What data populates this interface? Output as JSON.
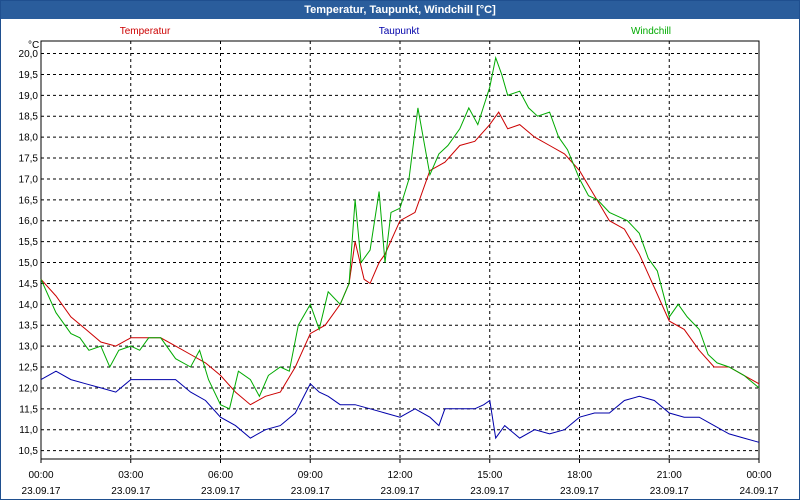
{
  "window": {
    "title": "Temperatur, Taupunkt, Windchill [°C]"
  },
  "chart_data": {
    "type": "line",
    "title": "Temperatur, Taupunkt, Windchill [°C]",
    "ylabel": "°C",
    "ylim": [
      10.3,
      20.3
    ],
    "xlim": [
      0,
      24
    ],
    "grid": true,
    "legend_position": "top",
    "y_ticks": [
      "10,5",
      "11,0",
      "11,5",
      "12,0",
      "12,5",
      "13,0",
      "13,5",
      "14,0",
      "14,5",
      "15,0",
      "15,5",
      "16,0",
      "16,5",
      "17,0",
      "17,5",
      "18,0",
      "18,5",
      "19,0",
      "19,5",
      "20,0"
    ],
    "x_ticks": [
      {
        "time": "00:00",
        "date": "23.09.17"
      },
      {
        "time": "03:00",
        "date": "23.09.17"
      },
      {
        "time": "06:00",
        "date": "23.09.17"
      },
      {
        "time": "09:00",
        "date": "23.09.17"
      },
      {
        "time": "12:00",
        "date": "23.09.17"
      },
      {
        "time": "15:00",
        "date": "23.09.17"
      },
      {
        "time": "18:00",
        "date": "23.09.17"
      },
      {
        "time": "21:00",
        "date": "23.09.17"
      },
      {
        "time": "00:00",
        "date": "24.09.17"
      }
    ],
    "series": [
      {
        "name": "Temperatur",
        "color": "#cc0000",
        "x": [
          0,
          0.5,
          1,
          1.5,
          2,
          2.5,
          3,
          3.5,
          4,
          4.5,
          5,
          5.5,
          6,
          6.5,
          7,
          7.5,
          8,
          8.5,
          9,
          9.5,
          10,
          10.3,
          10.5,
          10.8,
          11,
          11.3,
          11.5,
          12,
          12.5,
          13,
          13.5,
          14,
          14.5,
          15,
          15.3,
          15.6,
          16,
          16.5,
          17,
          17.5,
          18,
          18.5,
          19,
          19.5,
          20,
          20.5,
          21,
          21.5,
          22,
          22.5,
          23,
          23.5,
          24
        ],
        "y": [
          14.6,
          14.2,
          13.7,
          13.4,
          13.1,
          13.0,
          13.2,
          13.2,
          13.2,
          13.0,
          12.8,
          12.6,
          12.3,
          11.9,
          11.6,
          11.8,
          11.9,
          12.5,
          13.3,
          13.5,
          14.0,
          14.5,
          15.5,
          14.6,
          14.5,
          15.0,
          15.2,
          16.0,
          16.2,
          17.2,
          17.4,
          17.8,
          17.9,
          18.3,
          18.6,
          18.2,
          18.3,
          18.0,
          17.8,
          17.6,
          17.2,
          16.6,
          16.0,
          15.8,
          15.2,
          14.4,
          13.6,
          13.4,
          12.9,
          12.5,
          12.5,
          12.3,
          12.1
        ]
      },
      {
        "name": "Taupunkt",
        "color": "#0000aa",
        "x": [
          0,
          0.5,
          1,
          1.5,
          2,
          2.5,
          3,
          3.5,
          4,
          4.5,
          5,
          5.5,
          6,
          6.5,
          7,
          7.5,
          8,
          8.5,
          9,
          9.3,
          9.6,
          10,
          10.5,
          11,
          11.5,
          12,
          12.5,
          13,
          13.3,
          13.5,
          14,
          14.5,
          14.8,
          15,
          15.2,
          15.5,
          16,
          16.5,
          17,
          17.5,
          18,
          18.5,
          19,
          19.5,
          20,
          20.5,
          21,
          21.5,
          22,
          22.5,
          23,
          23.5,
          24
        ],
        "y": [
          12.2,
          12.4,
          12.2,
          12.1,
          12.0,
          11.9,
          12.2,
          12.2,
          12.2,
          12.2,
          11.9,
          11.7,
          11.3,
          11.1,
          10.8,
          11.0,
          11.1,
          11.4,
          12.1,
          11.9,
          11.8,
          11.6,
          11.6,
          11.5,
          11.4,
          11.3,
          11.5,
          11.3,
          11.1,
          11.5,
          11.5,
          11.5,
          11.6,
          11.7,
          10.8,
          11.1,
          10.8,
          11.0,
          10.9,
          11.0,
          11.3,
          11.4,
          11.4,
          11.7,
          11.8,
          11.7,
          11.4,
          11.3,
          11.3,
          11.1,
          10.9,
          10.8,
          10.7
        ]
      },
      {
        "name": "Windchill",
        "color": "#00aa00",
        "x": [
          0,
          0.5,
          1,
          1.3,
          1.6,
          2,
          2.3,
          2.6,
          3,
          3.3,
          3.6,
          4,
          4.5,
          5,
          5.3,
          5.6,
          6,
          6.3,
          6.6,
          7,
          7.3,
          7.6,
          8,
          8.3,
          8.6,
          9,
          9.3,
          9.6,
          10,
          10.3,
          10.5,
          10.7,
          11,
          11.3,
          11.5,
          11.7,
          12,
          12.3,
          12.6,
          13,
          13.3,
          13.6,
          14,
          14.3,
          14.6,
          15,
          15.2,
          15.4,
          15.6,
          16,
          16.3,
          16.6,
          17,
          17.3,
          17.6,
          18,
          18.3,
          18.6,
          19,
          19.3,
          19.6,
          20,
          20.3,
          20.6,
          21,
          21.3,
          21.6,
          22,
          22.3,
          22.6,
          23,
          23.5,
          24
        ],
        "y": [
          14.6,
          13.8,
          13.3,
          13.2,
          12.9,
          13.0,
          12.5,
          12.9,
          13.0,
          12.9,
          13.2,
          13.2,
          12.7,
          12.5,
          12.9,
          12.2,
          11.6,
          11.5,
          12.4,
          12.2,
          11.8,
          12.3,
          12.5,
          12.4,
          13.5,
          14.0,
          13.4,
          14.3,
          14.0,
          14.5,
          16.5,
          15.0,
          15.3,
          16.7,
          15.0,
          16.2,
          16.3,
          17.0,
          18.7,
          17.1,
          17.6,
          17.8,
          18.2,
          18.7,
          18.3,
          19.2,
          19.9,
          19.5,
          19.0,
          19.1,
          18.7,
          18.5,
          18.6,
          18.0,
          17.7,
          17.0,
          16.6,
          16.5,
          16.2,
          16.1,
          16.0,
          15.7,
          15.1,
          14.8,
          13.7,
          14.0,
          13.7,
          13.4,
          12.8,
          12.6,
          12.5,
          12.3,
          12.0
        ]
      }
    ]
  }
}
